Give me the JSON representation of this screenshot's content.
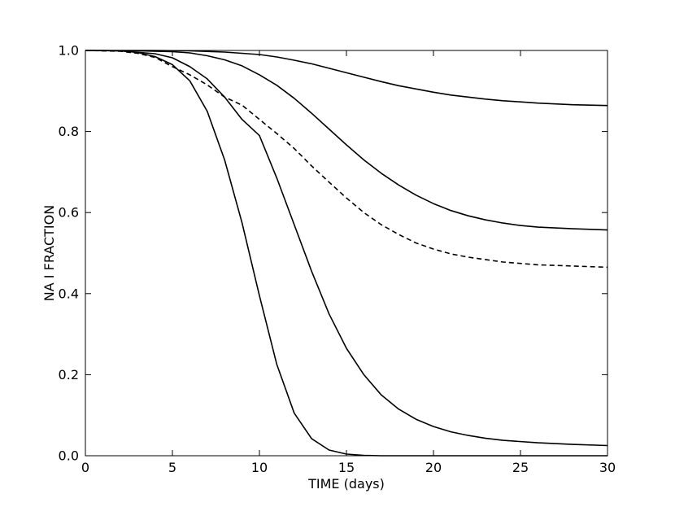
{
  "chart_data": {
    "type": "line",
    "title": "",
    "xlabel": "TIME (days)",
    "ylabel": "NA I FRACTION",
    "xlim": [
      0,
      30
    ],
    "ylim": [
      0.0,
      1.0
    ],
    "xticks": [
      "0",
      "5",
      "10",
      "15",
      "20",
      "25",
      "30"
    ],
    "yticks": [
      "0.0",
      "0.2",
      "0.4",
      "0.6",
      "0.8",
      "1.0"
    ],
    "grid": false,
    "legend": "none",
    "line_color": "#000000",
    "series": [
      {
        "style": "solid",
        "x": [
          0,
          1,
          2,
          3,
          4,
          5,
          6,
          7,
          8,
          9,
          10,
          11,
          12,
          13,
          14,
          15,
          16,
          17,
          18,
          19,
          20,
          22,
          24,
          26,
          28,
          30
        ],
        "y": [
          1.0,
          1.0,
          0.999,
          0.995,
          0.985,
          0.965,
          0.925,
          0.85,
          0.73,
          0.575,
          0.395,
          0.225,
          0.105,
          0.042,
          0.014,
          0.004,
          0.001,
          0.0,
          0.0,
          0.0,
          0.0,
          0.0,
          0.0,
          0.0,
          0.0,
          0.0
        ]
      },
      {
        "style": "solid",
        "x": [
          0,
          2,
          4,
          5,
          6,
          7,
          8,
          9,
          10,
          11,
          12,
          13,
          14,
          15,
          16,
          17,
          18,
          19,
          20,
          21,
          22,
          23,
          24,
          26,
          28,
          30
        ],
        "y": [
          1.0,
          0.999,
          0.992,
          0.982,
          0.96,
          0.93,
          0.885,
          0.83,
          0.79,
          0.685,
          0.57,
          0.455,
          0.35,
          0.265,
          0.2,
          0.15,
          0.115,
          0.09,
          0.072,
          0.059,
          0.05,
          0.043,
          0.038,
          0.032,
          0.028,
          0.025
        ]
      },
      {
        "style": "dashed",
        "x": [
          0,
          2,
          3,
          4,
          5,
          6,
          7,
          8,
          9,
          10,
          11,
          12,
          13,
          14,
          15,
          16,
          17,
          18,
          19,
          20,
          21,
          22,
          24,
          26,
          28,
          30
        ],
        "y": [
          1.0,
          0.998,
          0.993,
          0.983,
          0.96,
          0.94,
          0.915,
          0.885,
          0.865,
          0.83,
          0.795,
          0.758,
          0.715,
          0.675,
          0.636,
          0.6,
          0.57,
          0.546,
          0.525,
          0.51,
          0.498,
          0.49,
          0.478,
          0.471,
          0.468,
          0.465
        ]
      },
      {
        "style": "solid",
        "x": [
          0,
          3,
          5,
          6,
          7,
          8,
          9,
          10,
          11,
          12,
          13,
          14,
          15,
          16,
          17,
          18,
          19,
          20,
          21,
          22,
          23,
          24,
          25,
          26,
          28,
          30
        ],
        "y": [
          1.0,
          0.999,
          0.997,
          0.994,
          0.987,
          0.977,
          0.962,
          0.94,
          0.914,
          0.882,
          0.845,
          0.806,
          0.767,
          0.73,
          0.697,
          0.668,
          0.643,
          0.622,
          0.605,
          0.592,
          0.582,
          0.574,
          0.568,
          0.564,
          0.56,
          0.557
        ]
      },
      {
        "style": "solid",
        "x": [
          0,
          4,
          6,
          8,
          10,
          11,
          12,
          13,
          14,
          15,
          16,
          17,
          18,
          19,
          20,
          21,
          22,
          23,
          24,
          25,
          26,
          27,
          28,
          29,
          30
        ],
        "y": [
          1.0,
          1.0,
          0.999,
          0.996,
          0.99,
          0.984,
          0.976,
          0.967,
          0.956,
          0.945,
          0.934,
          0.923,
          0.913,
          0.905,
          0.897,
          0.89,
          0.885,
          0.88,
          0.876,
          0.873,
          0.87,
          0.868,
          0.866,
          0.865,
          0.864
        ]
      }
    ]
  }
}
